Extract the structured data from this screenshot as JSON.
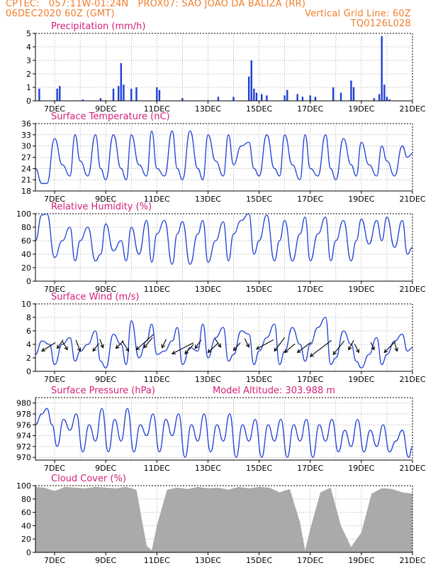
{
  "header": {
    "line1_left": "CPTEC:",
    "line1_coords": "057:11W-01:24N",
    "line1_station": "PROX07: SAO JOAO DA BALIZA (RR)",
    "line2_left": "06DEC2020 60Z (GMT)",
    "line2_right": "Vertical Grid Line: 60Z",
    "line3_right": "TQ0126L028"
  },
  "colors": {
    "header": "#f07d2a",
    "title": "#d4207a",
    "series": "#1f3fd4",
    "cloud": "#aaaaaa",
    "arrow": "#000000"
  },
  "x_axis": {
    "range": [
      6.25,
      21.0
    ],
    "ticks": [
      7,
      9,
      11,
      13,
      15,
      17,
      19,
      21
    ],
    "tick_labels": [
      "7DEC",
      "9DEC",
      "11DEC",
      "13DEC",
      "15DEC",
      "17DEC",
      "19DEC",
      "21DEC"
    ],
    "gridlines": [
      7,
      8,
      9,
      10,
      11,
      12,
      13,
      14,
      15,
      16,
      17,
      18,
      19,
      20
    ]
  },
  "chart_data": [
    {
      "id": "precip",
      "type": "bar",
      "title": "Precipitation (mm/h)",
      "ylim": [
        0,
        5
      ],
      "yticks": [
        0,
        1,
        2,
        3,
        4,
        5
      ],
      "x": [
        6.4,
        7.1,
        7.2,
        8.1,
        8.8,
        9.3,
        9.5,
        9.6,
        9.7,
        10.0,
        10.2,
        11.0,
        11.1,
        12.0,
        13.4,
        14.0,
        14.6,
        14.7,
        14.8,
        14.9,
        15.1,
        15.3,
        16.0,
        16.1,
        16.5,
        16.7,
        17.0,
        17.2,
        17.9,
        18.2,
        18.6,
        18.7,
        19.5,
        19.7,
        19.8,
        19.9,
        20.0,
        20.1
      ],
      "values": [
        0.9,
        0.9,
        1.1,
        0.1,
        0.2,
        0.9,
        1.1,
        2.8,
        1.2,
        0.9,
        1.0,
        1.0,
        0.8,
        0.2,
        0.3,
        0.3,
        1.8,
        3.0,
        0.9,
        0.6,
        0.5,
        0.4,
        0.4,
        0.8,
        0.5,
        0.3,
        0.4,
        0.3,
        1.0,
        0.6,
        1.5,
        1.0,
        0.2,
        0.5,
        4.8,
        1.2,
        0.3,
        0.1
      ]
    },
    {
      "id": "temp",
      "type": "line",
      "title": "Surface Temperature (nC)",
      "ylim": [
        18,
        36
      ],
      "yticks": [
        18,
        21,
        24,
        27,
        30,
        33,
        36
      ],
      "x": [
        6.25,
        6.5,
        6.7,
        7.0,
        7.3,
        7.6,
        7.8,
        8.0,
        8.3,
        8.6,
        8.8,
        9.0,
        9.3,
        9.6,
        9.8,
        10.0,
        10.3,
        10.6,
        10.8,
        11.0,
        11.3,
        11.6,
        11.8,
        12.0,
        12.3,
        12.6,
        12.8,
        13.0,
        13.3,
        13.6,
        13.8,
        14.0,
        14.3,
        14.6,
        14.8,
        15.0,
        15.3,
        15.6,
        15.8,
        16.0,
        16.3,
        16.6,
        16.8,
        17.0,
        17.3,
        17.6,
        17.8,
        18.0,
        18.3,
        18.6,
        18.8,
        19.0,
        19.3,
        19.6,
        19.8,
        20.0,
        20.3,
        20.6,
        20.8,
        21.0
      ],
      "values": [
        24,
        20,
        20,
        32,
        25,
        22,
        33,
        26,
        22,
        33,
        24,
        21,
        33,
        24,
        21,
        33,
        25,
        22,
        34,
        24,
        22,
        34,
        24,
        21,
        34,
        24,
        21,
        33,
        26,
        22,
        33,
        25,
        30,
        31,
        24,
        22,
        33,
        24,
        22,
        33,
        25,
        21,
        33,
        24,
        22,
        33,
        24,
        21,
        32,
        25,
        22,
        31,
        25,
        22,
        30,
        26,
        22,
        30,
        27,
        28
      ]
    },
    {
      "id": "rh",
      "type": "line",
      "title": "Relative Humidity (%)",
      "ylim": [
        0,
        100
      ],
      "yticks": [
        0,
        20,
        40,
        60,
        80,
        100
      ],
      "x": [
        6.25,
        6.5,
        6.7,
        7.0,
        7.3,
        7.6,
        7.8,
        8.0,
        8.3,
        8.6,
        8.8,
        9.0,
        9.3,
        9.6,
        9.8,
        10.0,
        10.3,
        10.6,
        10.8,
        11.0,
        11.3,
        11.6,
        11.8,
        12.0,
        12.3,
        12.6,
        12.8,
        13.0,
        13.3,
        13.6,
        13.8,
        14.0,
        14.3,
        14.6,
        14.8,
        15.0,
        15.3,
        15.6,
        15.8,
        16.0,
        16.3,
        16.6,
        16.8,
        17.0,
        17.3,
        17.6,
        17.8,
        18.0,
        18.3,
        18.6,
        18.8,
        19.0,
        19.3,
        19.6,
        19.8,
        20.0,
        20.3,
        20.6,
        20.8,
        21.0
      ],
      "values": [
        60,
        98,
        100,
        35,
        60,
        80,
        30,
        60,
        80,
        30,
        40,
        85,
        45,
        60,
        30,
        80,
        40,
        90,
        28,
        70,
        90,
        25,
        70,
        88,
        25,
        70,
        90,
        28,
        60,
        88,
        30,
        70,
        90,
        100,
        40,
        60,
        98,
        30,
        60,
        90,
        30,
        70,
        95,
        30,
        70,
        95,
        30,
        60,
        90,
        30,
        60,
        92,
        55,
        90,
        60,
        95,
        50,
        90,
        40,
        50
      ]
    },
    {
      "id": "wind",
      "type": "line",
      "title": "Surface Wind (m/s)",
      "ylim": [
        0,
        10
      ],
      "yticks": [
        0,
        2,
        4,
        6,
        8,
        10
      ],
      "x": [
        6.25,
        6.5,
        6.8,
        7.0,
        7.3,
        7.6,
        7.8,
        8.0,
        8.3,
        8.6,
        8.8,
        9.0,
        9.3,
        9.6,
        9.8,
        10.0,
        10.3,
        10.6,
        10.8,
        11.0,
        11.3,
        11.6,
        11.8,
        12.0,
        12.3,
        12.6,
        12.8,
        13.0,
        13.3,
        13.6,
        13.8,
        14.0,
        14.3,
        14.6,
        14.8,
        15.0,
        15.3,
        15.6,
        15.8,
        16.0,
        16.3,
        16.6,
        16.8,
        17.0,
        17.3,
        17.6,
        17.8,
        18.0,
        18.3,
        18.6,
        18.8,
        19.0,
        19.3,
        19.6,
        19.8,
        20.0,
        20.3,
        20.6,
        20.8,
        21.0
      ],
      "values": [
        2.5,
        4.5,
        4.0,
        1.0,
        4.0,
        5.0,
        1.5,
        3.0,
        4.0,
        6.0,
        1.5,
        0.5,
        5.5,
        4.0,
        1.0,
        7.5,
        2.0,
        4.5,
        7.0,
        2.5,
        3.0,
        4.5,
        6.5,
        1.0,
        3.5,
        3.0,
        7.0,
        2.0,
        5.0,
        6.5,
        1.5,
        2.5,
        6.0,
        5.5,
        1.0,
        3.0,
        5.0,
        7.0,
        1.0,
        3.0,
        6.5,
        4.0,
        1.5,
        4.0,
        6.5,
        8.0,
        1.0,
        2.0,
        6.0,
        4.0,
        1.5,
        0.5,
        2.5,
        5.0,
        1.0,
        2.5,
        4.5,
        5.5,
        3.0,
        3.5
      ],
      "arrows": [
        {
          "x": 6.5,
          "y": 3.0,
          "u": 1.6,
          "v": 1.0
        },
        {
          "x": 7.1,
          "y": 3.4,
          "u": 0.7,
          "v": 1.0
        },
        {
          "x": 7.5,
          "y": 3.2,
          "u": -0.6,
          "v": 1.0
        },
        {
          "x": 8.0,
          "y": 3.0,
          "u": -0.5,
          "v": 1.3
        },
        {
          "x": 8.5,
          "y": 3.0,
          "u": 0.7,
          "v": 0.9
        },
        {
          "x": 8.9,
          "y": 3.5,
          "u": -0.4,
          "v": 1.0
        },
        {
          "x": 9.4,
          "y": 3.4,
          "u": 0.9,
          "v": 0.9
        },
        {
          "x": 9.9,
          "y": 3.0,
          "u": -0.8,
          "v": 1.2
        },
        {
          "x": 10.2,
          "y": 3.2,
          "u": 2.0,
          "v": 1.8
        },
        {
          "x": 10.5,
          "y": 3.5,
          "u": 1.0,
          "v": 1.2
        },
        {
          "x": 11.2,
          "y": 3.5,
          "u": 0.5,
          "v": 1.0
        },
        {
          "x": 11.6,
          "y": 2.6,
          "u": 2.5,
          "v": 1.3
        },
        {
          "x": 12.1,
          "y": 2.6,
          "u": 1.0,
          "v": 1.1
        },
        {
          "x": 12.5,
          "y": 3.4,
          "u": 0.7,
          "v": 1.0
        },
        {
          "x": 13.0,
          "y": 2.8,
          "u": 1.2,
          "v": 1.1
        },
        {
          "x": 13.5,
          "y": 3.6,
          "u": -0.7,
          "v": 1.0
        },
        {
          "x": 14.0,
          "y": 3.1,
          "u": 0.8,
          "v": 0.9
        },
        {
          "x": 14.6,
          "y": 3.6,
          "u": -0.5,
          "v": 1.0
        },
        {
          "x": 14.9,
          "y": 3.3,
          "u": 2.0,
          "v": 1.1
        },
        {
          "x": 15.6,
          "y": 3.0,
          "u": 1.2,
          "v": 1.6
        },
        {
          "x": 16.0,
          "y": 2.8,
          "u": 1.2,
          "v": 1.0
        },
        {
          "x": 16.5,
          "y": 2.8,
          "u": 1.6,
          "v": 1.2
        },
        {
          "x": 17.0,
          "y": 2.2,
          "u": 2.5,
          "v": 1.9
        },
        {
          "x": 17.9,
          "y": 2.5,
          "u": 1.3,
          "v": 1.6
        },
        {
          "x": 18.5,
          "y": 3.2,
          "u": 0.6,
          "v": 1.1
        },
        {
          "x": 18.9,
          "y": 2.8,
          "u": -0.5,
          "v": 1.0
        },
        {
          "x": 19.5,
          "y": 3.2,
          "u": -0.4,
          "v": 0.9
        },
        {
          "x": 19.9,
          "y": 2.8,
          "u": 1.3,
          "v": 1.3
        },
        {
          "x": 20.4,
          "y": 3.0,
          "u": -0.3,
          "v": 1.0
        }
      ]
    },
    {
      "id": "pressure",
      "type": "line",
      "title": "Surface Pressure (hPa)",
      "annotation": "Model Altitude: 303.988 m",
      "ylim": [
        969.5,
        981
      ],
      "yticks": [
        970,
        972,
        974,
        976,
        978,
        980
      ],
      "x": [
        6.25,
        6.5,
        6.7,
        6.9,
        7.1,
        7.35,
        7.6,
        7.85,
        8.1,
        8.35,
        8.6,
        8.85,
        9.1,
        9.35,
        9.6,
        9.85,
        10.1,
        10.35,
        10.6,
        10.85,
        11.1,
        11.35,
        11.6,
        11.85,
        12.1,
        12.35,
        12.6,
        12.85,
        13.1,
        13.35,
        13.6,
        13.85,
        14.1,
        14.35,
        14.6,
        14.85,
        15.1,
        15.35,
        15.6,
        15.85,
        16.1,
        16.35,
        16.6,
        16.85,
        17.1,
        17.35,
        17.6,
        17.85,
        18.1,
        18.35,
        18.6,
        18.85,
        19.1,
        19.35,
        19.6,
        19.85,
        20.1,
        20.35,
        20.6,
        20.85,
        21.0
      ],
      "values": [
        976,
        978,
        979,
        976,
        972,
        977,
        975,
        978,
        971,
        976,
        973,
        979,
        971,
        977,
        973,
        979,
        971,
        976,
        974,
        978,
        971,
        977,
        974,
        978,
        970,
        976,
        973,
        978,
        971,
        976,
        973,
        978,
        970,
        976,
        973,
        977,
        970,
        976,
        973,
        977,
        970,
        976,
        973,
        977,
        970,
        976,
        973,
        977,
        971,
        975,
        972,
        977,
        971,
        975,
        972,
        976,
        971,
        973,
        975,
        970,
        972
      ]
    },
    {
      "id": "cloud",
      "type": "bar",
      "title": "Cloud Cover (%)",
      "ylim": [
        0,
        100
      ],
      "yticks": [
        0,
        20,
        40,
        60,
        80,
        100
      ],
      "x": [
        6.25,
        6.6,
        7.0,
        7.4,
        7.8,
        8.2,
        8.6,
        9.0,
        9.4,
        9.8,
        10.2,
        10.6,
        10.8,
        11.0,
        11.4,
        11.8,
        12.2,
        12.6,
        13.0,
        13.4,
        13.8,
        14.2,
        14.6,
        15.0,
        15.4,
        15.8,
        16.2,
        16.6,
        16.8,
        17.0,
        17.4,
        17.8,
        18.2,
        18.6,
        19.0,
        19.4,
        19.8,
        20.2,
        20.6,
        21.0
      ],
      "values": [
        98,
        97,
        92,
        98,
        97,
        96,
        98,
        97,
        96,
        98,
        94,
        10,
        3,
        40,
        94,
        97,
        95,
        98,
        96,
        97,
        94,
        98,
        96,
        98,
        97,
        90,
        95,
        45,
        3,
        35,
        90,
        97,
        40,
        8,
        30,
        88,
        96,
        95,
        90,
        88
      ]
    }
  ]
}
